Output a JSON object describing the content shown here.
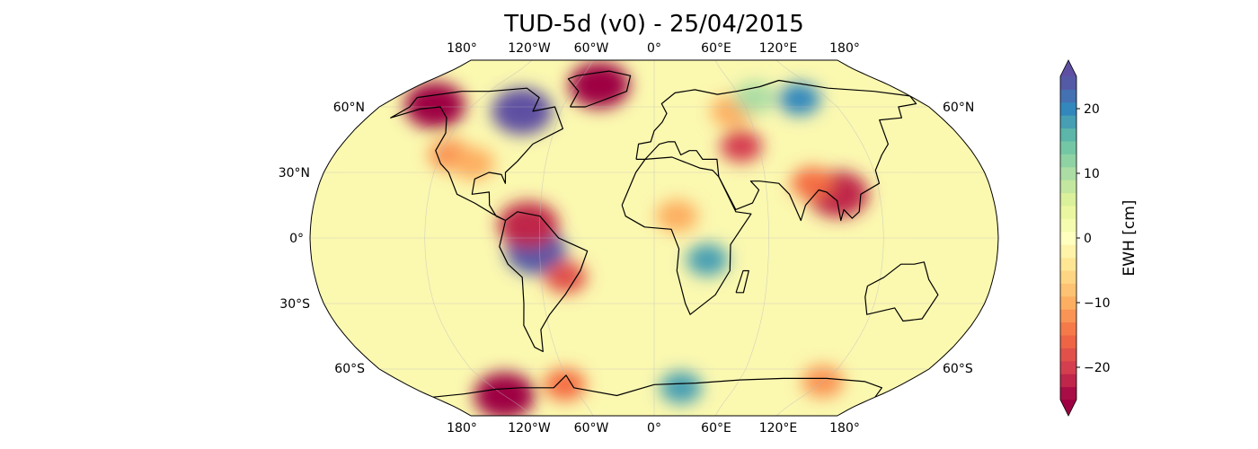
{
  "title": "TUD-5d (v0) - 25/04/2015",
  "map": {
    "projection": "Robinson",
    "gridlines": true,
    "lon_labels": [
      "180°",
      "120°W",
      "60°W",
      "0°",
      "60°E",
      "120°E",
      "180°"
    ],
    "lat_labels_left": [
      "60°N",
      "30°N",
      "0°",
      "30°S",
      "60°S"
    ],
    "lat_labels_right": [
      "60°N",
      "60°S"
    ],
    "anomalies": [
      {
        "region": "Greenland",
        "lon": -42,
        "lat": 74,
        "value": -30
      },
      {
        "region": "Hudson Bay",
        "lon": -85,
        "lat": 58,
        "value": 25
      },
      {
        "region": "Alaska",
        "lon": -145,
        "lat": 61,
        "value": -25
      },
      {
        "region": "West Antarctica",
        "lon": -120,
        "lat": -77,
        "value": -28
      },
      {
        "region": "Antarctic Peninsula",
        "lon": -65,
        "lat": -70,
        "value": -15
      },
      {
        "region": "East Antarctica coast",
        "lon": 20,
        "lat": -72,
        "value": 18
      },
      {
        "region": "Amazon",
        "lon": -62,
        "lat": -6,
        "value": 24
      },
      {
        "region": "Orinoco",
        "lon": -66,
        "lat": 6,
        "value": -22
      },
      {
        "region": "Southeast Brazil",
        "lon": -47,
        "lat": -18,
        "value": -18
      },
      {
        "region": "Central Africa",
        "lon": 28,
        "lat": -10,
        "value": 18
      },
      {
        "region": "Sahel",
        "lon": 12,
        "lat": 10,
        "value": -10
      },
      {
        "region": "Siberia",
        "lon": 100,
        "lat": 65,
        "value": 20
      },
      {
        "region": "Caspian",
        "lon": 50,
        "lat": 42,
        "value": -20
      },
      {
        "region": "Indochina",
        "lon": 98,
        "lat": 20,
        "value": -22
      },
      {
        "region": "Northeast India",
        "lon": 85,
        "lat": 25,
        "value": -15
      },
      {
        "region": "Western US",
        "lon": -115,
        "lat": 38,
        "value": -12
      },
      {
        "region": "Great Plains",
        "lon": -100,
        "lat": 34,
        "value": -10
      },
      {
        "region": "East Antarctica Wilkes",
        "lon": 120,
        "lat": -68,
        "value": -12
      },
      {
        "region": "Russia West",
        "lon": 50,
        "lat": 58,
        "value": -10
      },
      {
        "region": "Northern Asia",
        "lon": 70,
        "lat": 66,
        "value": 10
      }
    ]
  },
  "colorbar": {
    "label": "EWH [cm]",
    "colormap": "Spectral",
    "range": [
      -25,
      25
    ],
    "extend": "both",
    "ticks": [
      20,
      10,
      0,
      -10,
      -20
    ],
    "tick_labels": [
      "20",
      "10",
      "0",
      "−10",
      "−20"
    ]
  }
}
